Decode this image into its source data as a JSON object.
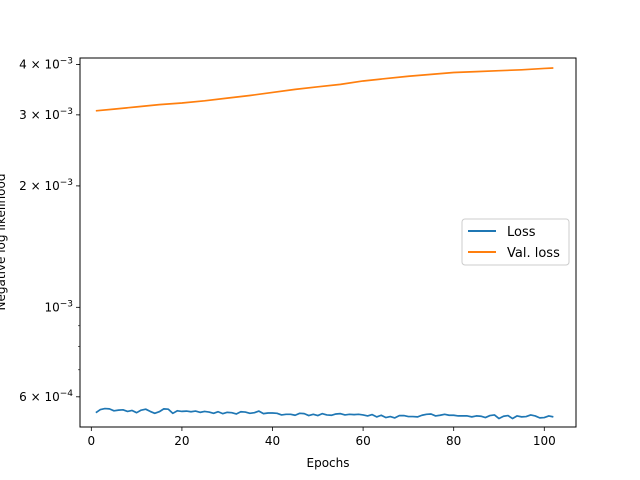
{
  "chart_data": {
    "type": "line",
    "title": "",
    "xlabel": "Epochs",
    "ylabel": "Negative log likelihood",
    "yscale": "log",
    "xlim": [
      -2.5,
      107
    ],
    "ylim": [
      0.000505,
      0.00415
    ],
    "grid": false,
    "legend_position": "center-right",
    "x_ticks": [
      0,
      20,
      40,
      60,
      80,
      100
    ],
    "x_tick_labels": [
      "0",
      "20",
      "40",
      "60",
      "80",
      "100"
    ],
    "y_ticks": [
      0.0006,
      0.001,
      0.002,
      0.003,
      0.004
    ],
    "y_tick_labels": [
      {
        "mant": "6",
        "base": "10",
        "exp": "−4"
      },
      {
        "mant": "",
        "base": "10",
        "exp": "−3"
      },
      {
        "mant": "2",
        "base": "10",
        "exp": "−3"
      },
      {
        "mant": "3",
        "base": "10",
        "exp": "−3"
      },
      {
        "mant": "4",
        "base": "10",
        "exp": "−3"
      }
    ],
    "series": [
      {
        "name": "Loss",
        "color": "#1f77b4",
        "x": [
          1,
          2,
          3,
          4,
          5,
          6,
          7,
          8,
          9,
          10,
          11,
          12,
          13,
          14,
          15,
          16,
          17,
          18,
          19,
          20,
          21,
          22,
          23,
          24,
          25,
          26,
          27,
          28,
          29,
          30,
          31,
          32,
          33,
          34,
          35,
          36,
          37,
          38,
          39,
          40,
          41,
          42,
          43,
          44,
          45,
          46,
          47,
          48,
          49,
          50,
          51,
          52,
          53,
          54,
          55,
          56,
          57,
          58,
          59,
          60,
          61,
          62,
          63,
          64,
          65,
          66,
          67,
          68,
          69,
          70,
          71,
          72,
          73,
          74,
          75,
          76,
          77,
          78,
          79,
          80,
          81,
          82,
          83,
          84,
          85,
          86,
          87,
          88,
          89,
          90,
          91,
          92,
          93,
          94,
          95,
          96,
          97,
          98,
          99,
          100,
          101,
          102
        ],
        "values": [
          0.000548,
          0.000558,
          0.000561,
          0.00056,
          0.000554,
          0.000556,
          0.000557,
          0.000552,
          0.000555,
          0.000548,
          0.000556,
          0.000559,
          0.000552,
          0.000546,
          0.000551,
          0.00056,
          0.000559,
          0.000546,
          0.000554,
          0.000552,
          0.000553,
          0.000551,
          0.000553,
          0.000549,
          0.000552,
          0.00055,
          0.000546,
          0.000551,
          0.000545,
          0.000549,
          0.000548,
          0.000544,
          0.000551,
          0.00055,
          0.000546,
          0.000548,
          0.000553,
          0.000545,
          0.000547,
          0.000547,
          0.000546,
          0.000541,
          0.000543,
          0.000543,
          0.00054,
          0.000546,
          0.000545,
          0.000539,
          0.000543,
          0.000539,
          0.000545,
          0.000541,
          0.00054,
          0.000544,
          0.000545,
          0.000541,
          0.000543,
          0.000542,
          0.000543,
          0.000541,
          0.000538,
          0.000542,
          0.000535,
          0.00054,
          0.000533,
          0.000536,
          0.000532,
          0.000539,
          0.000539,
          0.000536,
          0.000536,
          0.000535,
          0.00054,
          0.000543,
          0.000544,
          0.000538,
          0.00054,
          0.000543,
          0.00054,
          0.00054,
          0.000538,
          0.000538,
          0.000538,
          0.000535,
          0.000538,
          0.000537,
          0.000533,
          0.000539,
          0.000541,
          0.00053,
          0.000537,
          0.000539,
          0.00053,
          0.000538,
          0.000535,
          0.000536,
          0.000541,
          0.000538,
          0.000532,
          0.000533,
          0.000538,
          0.000535
        ]
      },
      {
        "name": "Val. loss",
        "color": "#ff7f0e",
        "x": [
          1,
          5,
          10,
          15,
          20,
          25,
          30,
          35,
          40,
          45,
          50,
          55,
          60,
          65,
          70,
          75,
          80,
          85,
          90,
          95,
          100,
          102
        ],
        "values": [
          0.00307,
          0.0031,
          0.00314,
          0.00318,
          0.00321,
          0.00325,
          0.0033,
          0.00335,
          0.00341,
          0.00347,
          0.00352,
          0.00357,
          0.00364,
          0.00369,
          0.00374,
          0.00378,
          0.00382,
          0.00384,
          0.00386,
          0.00388,
          0.00391,
          0.00392
        ]
      }
    ]
  }
}
